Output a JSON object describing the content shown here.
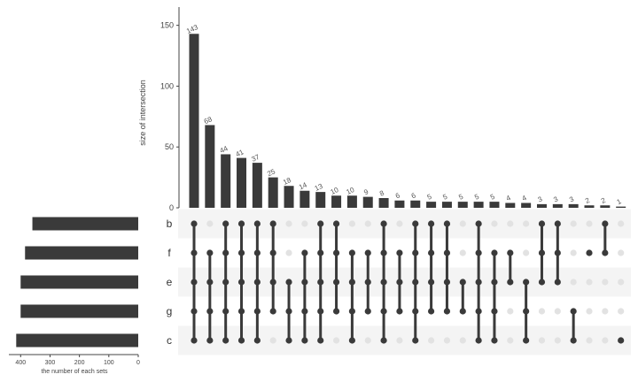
{
  "chart_data": {
    "type": "bar",
    "subtype": "upset",
    "ylabel": "size of intersection",
    "set_size_label": "the number of each sets",
    "ylim": [
      0,
      165
    ],
    "yticks": [
      0,
      50,
      100,
      150
    ],
    "set_size_ticks": [
      400,
      300,
      200,
      100,
      0
    ],
    "set_size_xlim": [
      0,
      440
    ],
    "sets": [
      "b",
      "f",
      "e",
      "g",
      "c"
    ],
    "set_sizes": [
      360,
      385,
      400,
      400,
      415
    ],
    "intersections": [
      {
        "value": 143,
        "label": "143",
        "members": [
          "b",
          "f",
          "e",
          "g",
          "c"
        ]
      },
      {
        "value": 68,
        "label": "68",
        "members": [
          "f",
          "e",
          "g",
          "c"
        ]
      },
      {
        "value": 44,
        "label": "44",
        "members": [
          "b",
          "f",
          "e",
          "g",
          "c"
        ]
      },
      {
        "value": 41,
        "label": "41",
        "members": [
          "b",
          "f",
          "e",
          "g",
          "c"
        ]
      },
      {
        "value": 37,
        "label": "37",
        "members": [
          "b",
          "f",
          "e",
          "g",
          "c"
        ]
      },
      {
        "value": 25,
        "label": "25",
        "members": [
          "b",
          "f",
          "e",
          "g"
        ]
      },
      {
        "value": 18,
        "label": "18",
        "members": [
          "e",
          "g",
          "c"
        ]
      },
      {
        "value": 14,
        "label": "14",
        "members": [
          "f",
          "e",
          "g",
          "c"
        ]
      },
      {
        "value": 13,
        "label": "13",
        "members": [
          "b",
          "f",
          "e",
          "g",
          "c"
        ]
      },
      {
        "value": 10,
        "label": "10",
        "members": [
          "b",
          "f",
          "e",
          "g"
        ]
      },
      {
        "value": 10,
        "label": "10",
        "members": [
          "f",
          "e",
          "g",
          "c"
        ]
      },
      {
        "value": 9,
        "label": "9",
        "members": [
          "f",
          "e",
          "g"
        ]
      },
      {
        "value": 8,
        "label": "8",
        "members": [
          "b",
          "f",
          "e",
          "g",
          "c"
        ]
      },
      {
        "value": 6,
        "label": "6",
        "members": [
          "f",
          "e",
          "g"
        ]
      },
      {
        "value": 6,
        "label": "6",
        "members": [
          "b",
          "f",
          "e",
          "g",
          "c"
        ]
      },
      {
        "value": 5,
        "label": "5",
        "members": [
          "b",
          "f",
          "e",
          "g"
        ]
      },
      {
        "value": 5,
        "label": "5",
        "members": [
          "b",
          "f",
          "e",
          "g"
        ]
      },
      {
        "value": 5,
        "label": "5",
        "members": [
          "e",
          "g"
        ]
      },
      {
        "value": 5,
        "label": "5",
        "members": [
          "b",
          "f",
          "e",
          "g",
          "c"
        ]
      },
      {
        "value": 5,
        "label": "5",
        "members": [
          "f",
          "e",
          "g",
          "c"
        ]
      },
      {
        "value": 4,
        "label": "4",
        "members": [
          "f",
          "e"
        ]
      },
      {
        "value": 4,
        "label": "4",
        "members": [
          "e",
          "g",
          "c"
        ]
      },
      {
        "value": 3,
        "label": "3",
        "members": [
          "b",
          "f",
          "e"
        ]
      },
      {
        "value": 3,
        "label": "3",
        "members": [
          "b",
          "f",
          "e"
        ]
      },
      {
        "value": 3,
        "label": "3",
        "members": [
          "g",
          "c"
        ]
      },
      {
        "value": 2,
        "label": "2",
        "members": [
          "f"
        ]
      },
      {
        "value": 2,
        "label": "2",
        "members": [
          "b",
          "f"
        ]
      },
      {
        "value": 1,
        "label": "1",
        "members": [
          "c"
        ]
      }
    ]
  },
  "colors": {
    "bar": "#3a3a3a",
    "dot_active": "#3a3a3a",
    "dot_inactive": "#e2e2e2",
    "stripe": "#f4f4f4",
    "axis": "#444444"
  }
}
